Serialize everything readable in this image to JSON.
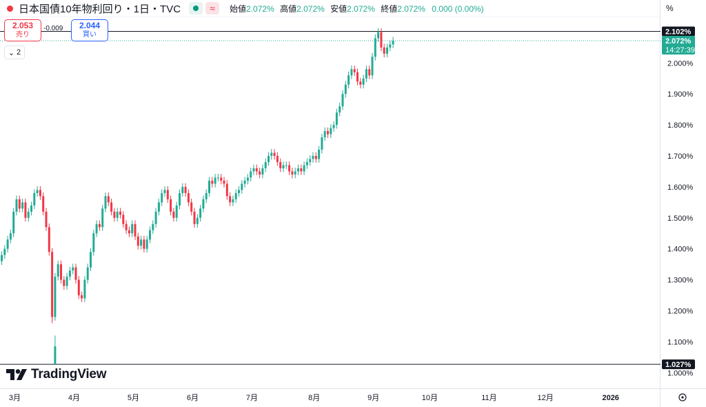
{
  "header": {
    "symbol_title": "日本国債10年物利回り・1日・TVC",
    "approx_icon": "≈",
    "ohlc": [
      {
        "label": "始値",
        "value": "2.072%"
      },
      {
        "label": "高値",
        "value": "2.072%"
      },
      {
        "label": "安値",
        "value": "2.072%"
      },
      {
        "label": "終値",
        "value": "2.072%"
      }
    ],
    "change": "0.000 (0.00%)"
  },
  "unit_label": "%",
  "trade": {
    "sell_price": "2.053",
    "sell_label": "売り",
    "spread": "-0.009",
    "buy_price": "2.044",
    "buy_label": "買い"
  },
  "collapse_label": "2",
  "logo_text": "TradingView",
  "colors": {
    "up": "#22ab94",
    "down": "#f23645",
    "axis_text": "#131722",
    "line": "#131722"
  },
  "axis_badges": {
    "high": "2.102%",
    "last": "2.072%",
    "countdown": "14:27:39",
    "low": "1.027%"
  },
  "chart_data": {
    "type": "candlestick",
    "y_unit": "%",
    "ylim": [
      0.985,
      2.13
    ],
    "y_ticks": [
      1.0,
      1.1,
      1.2,
      1.3,
      1.4,
      1.5,
      1.6,
      1.7,
      1.8,
      1.9,
      2.0
    ],
    "y_tick_labels": [
      "1.000%",
      "1.100%",
      "1.200%",
      "1.300%",
      "1.400%",
      "1.500%",
      "1.600%",
      "1.700%",
      "1.800%",
      "1.900%",
      "2.000%"
    ],
    "x_labels": [
      {
        "label": "3月",
        "i": 3
      },
      {
        "label": "4月",
        "i": 23
      },
      {
        "label": "5月",
        "i": 43
      },
      {
        "label": "6月",
        "i": 63
      },
      {
        "label": "7月",
        "i": 83
      },
      {
        "label": "8月",
        "i": 104
      },
      {
        "label": "9月",
        "i": 124
      },
      {
        "label": "10月",
        "i": 143
      },
      {
        "label": "11月",
        "i": 163
      },
      {
        "label": "12月",
        "i": 182
      },
      {
        "label": "2026",
        "i": 204
      }
    ],
    "session_high": 2.102,
    "session_low": 1.027,
    "last": 2.072,
    "close": [
      1.38,
      1.4,
      1.43,
      1.45,
      1.52,
      1.56,
      1.53,
      1.55,
      1.5,
      1.52,
      1.54,
      1.58,
      1.59,
      1.57,
      1.52,
      1.47,
      1.39,
      1.18,
      1.31,
      1.35,
      1.3,
      1.28,
      1.31,
      1.33,
      1.34,
      1.3,
      1.25,
      1.24,
      1.3,
      1.34,
      1.39,
      1.45,
      1.48,
      1.47,
      1.53,
      1.57,
      1.55,
      1.52,
      1.5,
      1.52,
      1.51,
      1.48,
      1.46,
      1.45,
      1.48,
      1.44,
      1.41,
      1.43,
      1.4,
      1.43,
      1.46,
      1.48,
      1.52,
      1.55,
      1.58,
      1.59,
      1.56,
      1.52,
      1.5,
      1.54,
      1.58,
      1.6,
      1.58,
      1.55,
      1.52,
      1.48,
      1.5,
      1.53,
      1.56,
      1.58,
      1.62,
      1.61,
      1.63,
      1.63,
      1.62,
      1.61,
      1.57,
      1.55,
      1.56,
      1.58,
      1.59,
      1.61,
      1.62,
      1.63,
      1.65,
      1.66,
      1.65,
      1.64,
      1.66,
      1.68,
      1.7,
      1.71,
      1.7,
      1.68,
      1.66,
      1.67,
      1.67,
      1.65,
      1.64,
      1.65,
      1.66,
      1.65,
      1.67,
      1.68,
      1.69,
      1.7,
      1.69,
      1.72,
      1.76,
      1.78,
      1.77,
      1.79,
      1.8,
      1.84,
      1.86,
      1.9,
      1.93,
      1.96,
      1.98,
      1.97,
      1.94,
      1.93,
      1.95,
      1.98,
      1.96,
      2.02,
      2.08,
      2.1,
      2.05,
      2.03,
      2.05,
      2.06,
      2.072
    ]
  }
}
